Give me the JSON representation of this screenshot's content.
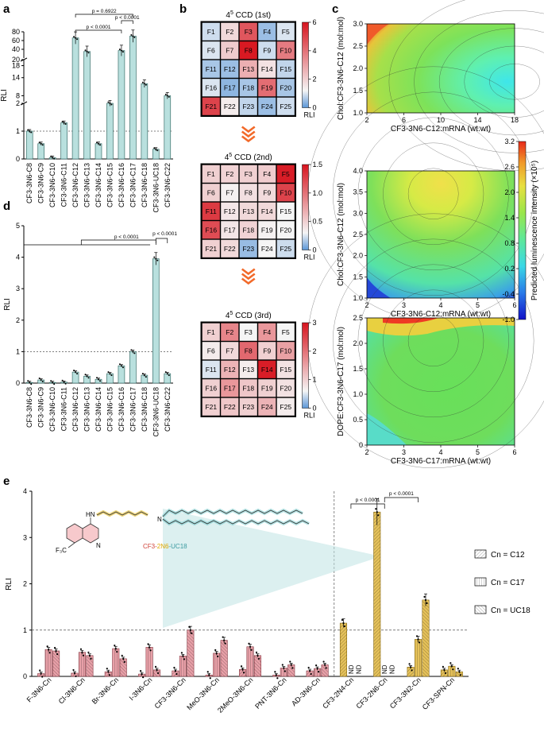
{
  "panels": {
    "a": "a",
    "b": "b",
    "c": "c",
    "d": "d",
    "e": "e"
  },
  "colors": {
    "teal": "#b9e0de",
    "tealEdge": "#3b6f6b",
    "pink": "#e8a0a8",
    "pinkEdge": "#8a3a44",
    "gold": "#e6c25a",
    "goldEdge": "#8a6a10"
  },
  "chart_data": [
    {
      "id": "a",
      "type": "bar",
      "ylabel": "RLI",
      "categories": [
        "CF3-3N6-C8",
        "CF3-3N6-C9",
        "CF3-3N6-C10",
        "CF3-3N6-C11",
        "CF3-3N6-C12",
        "CF3-3N6-C13",
        "CF3-3N6-C14",
        "CF3-3N6-C15",
        "CF3-3N6-C16",
        "CF3-3N6-C17",
        "CF3-3N6-C18",
        "CF3-3N6-UC18",
        "CF3-3N6-C22"
      ],
      "values": [
        1.0,
        0.55,
        0.05,
        1.3,
        66,
        35,
        0.55,
        4.5,
        37,
        70,
        12,
        0.35,
        8
      ],
      "yticks_top": [
        "80",
        "60",
        "40",
        "20"
      ],
      "yticks_mid": [
        "18",
        "14",
        "8"
      ],
      "yticks_bot": [
        "2",
        "1",
        "0"
      ],
      "pvalues": [
        "p = 0.6922",
        "p < 0.0001",
        "p < 0.0001"
      ]
    },
    {
      "id": "d",
      "type": "bar",
      "ylabel": "RLI",
      "categories": [
        "CF3-3N6-C8",
        "CF3-3N6-C9",
        "CF3-3N6-C10",
        "CF3-3N6-C11",
        "CF3-3N6-C12",
        "CF3-3N6-C13",
        "CF3-3N6-C14",
        "CF3-3N6-C15",
        "CF3-3N6-C16",
        "CF3-3N6-C17",
        "CF3-3N6-C18",
        "CF3-3N6-UC18",
        "CF3-3N6-C22"
      ],
      "values": [
        0.02,
        0.1,
        0.02,
        0.03,
        0.35,
        0.22,
        0.12,
        0.3,
        0.55,
        1.0,
        0.25,
        3.95,
        0.3
      ],
      "yticks": [
        "0",
        "1",
        "2",
        "3",
        "4",
        "5"
      ],
      "ylim": [
        0,
        5
      ],
      "pvalues": [
        "p < 0.0001",
        "p < 0.0001"
      ]
    },
    {
      "id": "b",
      "type": "heatmap",
      "grids": [
        {
          "title": "4",
          "sup": "5",
          "suffix": " CCD (1st)",
          "ticks": [
            "6",
            "4",
            "2",
            "0"
          ],
          "vmax": 6,
          "cells": [
            "F1",
            "F2",
            "F3",
            "F4",
            "F5",
            "F6",
            "F7",
            "F8",
            "F9",
            "F10",
            "F11",
            "F12",
            "F13",
            "F14",
            "F15",
            "F16",
            "F17",
            "F18",
            "F19",
            "F20",
            "F21",
            "F22",
            "F23",
            "F24",
            "F25"
          ],
          "values": [
            0.9,
            1.8,
            4.6,
            0.5,
            1.0,
            1.0,
            2.1,
            5.9,
            0.9,
            3.8,
            0.6,
            0.5,
            2.7,
            1.6,
            0.8,
            1.0,
            0.4,
            0.6,
            4.1,
            0.6,
            5.0,
            1.4,
            0.8,
            0.5,
            0.9
          ]
        },
        {
          "title": "4",
          "sup": "5",
          "suffix": " CCD (2nd)",
          "ticks": [
            "1.5",
            "1.0",
            "0.5",
            "0"
          ],
          "vmax": 1.5,
          "cells": [
            "F1",
            "F2",
            "F3",
            "F4",
            "F5",
            "F6",
            "F7",
            "F8",
            "F9",
            "F10",
            "F11",
            "F12",
            "F13",
            "F14",
            "F15",
            "F16",
            "F17",
            "F18",
            "F19",
            "F20",
            "F21",
            "F22",
            "F23",
            "F24",
            "F25"
          ],
          "values": [
            0.5,
            0.48,
            0.5,
            0.52,
            1.45,
            0.5,
            0.32,
            0.42,
            0.44,
            1.25,
            1.3,
            0.38,
            0.45,
            0.45,
            0.3,
            1.2,
            0.38,
            0.48,
            0.32,
            0.3,
            0.5,
            0.45,
            0.12,
            0.3,
            0.22
          ]
        },
        {
          "title": "4",
          "sup": "5",
          "suffix": " CCD (3rd)",
          "ticks": [
            "3",
            "2",
            "1",
            "0"
          ],
          "vmax": 3,
          "cells": [
            "F1",
            "F2",
            "F3",
            "F4",
            "F5",
            "F6",
            "F7",
            "F8",
            "F9",
            "F10",
            "F11",
            "F12",
            "F13",
            "F14",
            "F15",
            "F16",
            "F17",
            "F18",
            "F19",
            "F20",
            "F21",
            "F22",
            "F23",
            "F24",
            "F25"
          ],
          "values": [
            1.0,
            1.8,
            0.6,
            1.6,
            0.6,
            0.7,
            0.9,
            2.1,
            1.0,
            1.5,
            0.5,
            1.3,
            0.7,
            2.9,
            0.8,
            1.0,
            1.6,
            1.1,
            1.0,
            0.8,
            1.0,
            1.1,
            1.0,
            1.3,
            0.7
          ]
        }
      ],
      "colorbar_label": "RLI"
    },
    {
      "id": "c",
      "type": "heatmap",
      "plots": [
        {
          "ylabel": "Chol:CF3-3N6-C12 (mol:mol)",
          "xlabel": "CF3-3N6-C12:mRNA (wt:wt)",
          "xticks": [
            "2",
            "6",
            "10",
            "14",
            "18"
          ],
          "yticks": [
            "3.0",
            "2.5",
            "2.0",
            "1.5",
            "1.0"
          ]
        },
        {
          "ylabel": "Chol:CF3-3N6-C12 (mol:mol)",
          "xlabel": "CF3-3N6-C12:mRNA (wt:wt)",
          "xticks": [
            "2",
            "3",
            "4",
            "5",
            "6"
          ],
          "yticks": [
            "4.0",
            "3.5",
            "3.0",
            "2.5",
            "2.0",
            "1.5",
            "1.0"
          ]
        },
        {
          "ylabel": "DOPE:CF3-3N6-C17 (mol:mol)",
          "xlabel": "CF3-3N6-C17:mRNA (wt:wt)",
          "xticks": [
            "2",
            "3",
            "4",
            "5",
            "6"
          ],
          "yticks": [
            "2.5",
            "2.0",
            "1.5",
            "1.0",
            "0.5",
            "0"
          ]
        }
      ],
      "colorbar_ticks": [
        "3.2",
        "2.6",
        "2.0",
        "1.4",
        "0.8",
        "0.2",
        "-0.4",
        "-1.0"
      ],
      "colorbar_label": "Predicted luminescence intensity (×10⁵)"
    },
    {
      "id": "e",
      "type": "bar",
      "ylabel": "RLI",
      "categories": [
        "F-3N6-Cn",
        "Cl-3N6-Cn",
        "Br-3N6-Cn",
        "I-3N6-Cn",
        "CF3-3N6-Cn",
        "MeO-3N6-Cn",
        "2MeO-3N6-Cn",
        "PNT-3N6-Cn",
        "AD-3N6-Cn",
        "CF3-2N4-Cn",
        "CF3-2N6-Cn",
        "CF3-3N2-Cn",
        "CF3-SPN-Cn"
      ],
      "series": [
        {
          "name": "Cn = C12",
          "values": [
            0.06,
            0.07,
            0.1,
            0.05,
            0.12,
            0.03,
            0.15,
            0.03,
            0.12,
            1.15,
            3.55,
            0.2,
            0.14
          ]
        },
        {
          "name": "Cn = C17",
          "values": [
            0.58,
            0.52,
            0.6,
            0.63,
            0.44,
            0.5,
            0.64,
            0.18,
            0.17,
            0,
            0,
            0.8,
            0.22
          ]
        },
        {
          "name": "Cn = UC18",
          "values": [
            0.55,
            0.45,
            0.38,
            0.14,
            1.0,
            0.78,
            0.45,
            0.25,
            0.25,
            0,
            0,
            1.65,
            0.1
          ]
        }
      ],
      "yticks": [
        "0",
        "1",
        "2",
        "3",
        "4"
      ],
      "ylim": [
        0,
        4
      ],
      "nd_label": "ND",
      "pvalues": [
        "p < 0.0001",
        "p < 0.0001"
      ],
      "molecule_name": {
        "part1": "CF3-",
        "part2": "2N6",
        "part3": "-UC18"
      },
      "molecule_labels": {
        "hn": "HN",
        "n": "N",
        "cf3": "F₃C",
        "ring_n": "N"
      }
    }
  ]
}
